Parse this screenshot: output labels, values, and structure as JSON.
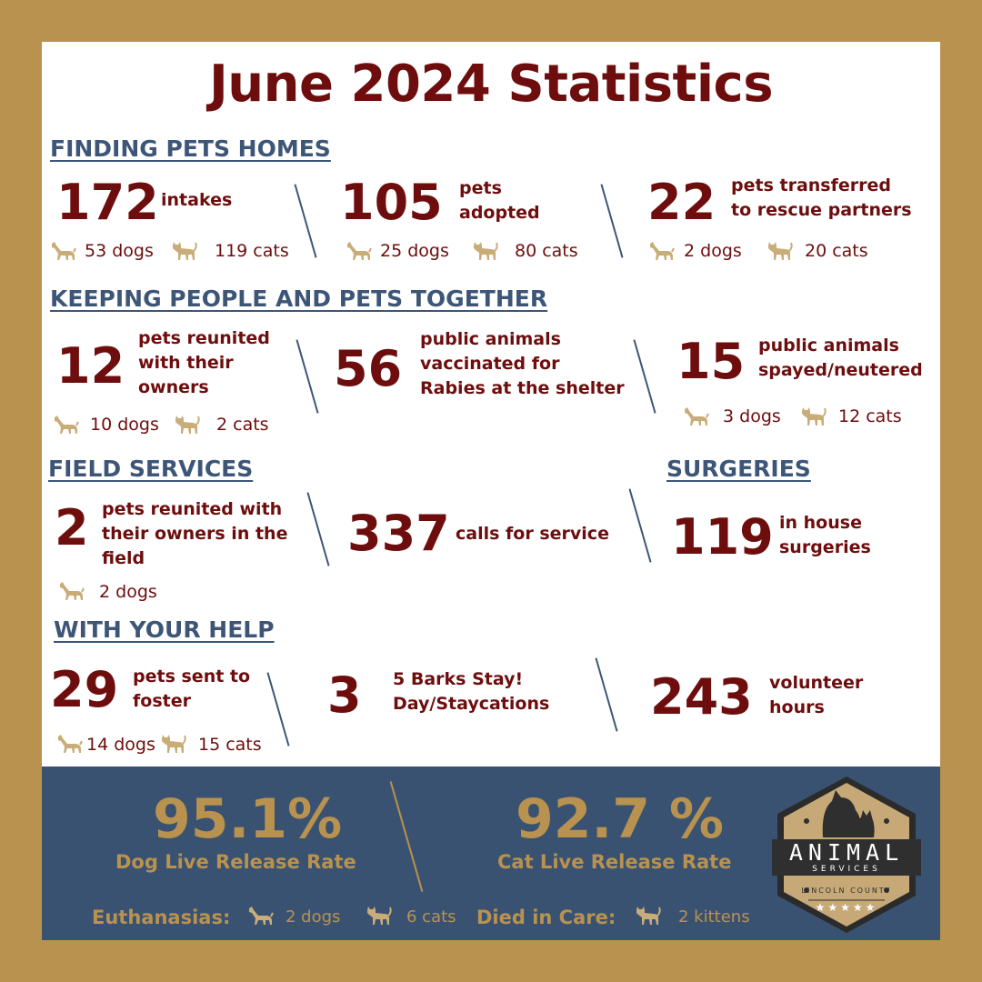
{
  "title": "June 2024 Statistics",
  "sections": {
    "finding": "FINDING PETS HOMES",
    "keeping": "KEEPING PEOPLE AND PETS TOGETHER",
    "field": "FIELD SERVICES",
    "surgeries": "SURGERIES",
    "help": "WITH YOUR HELP"
  },
  "finding": {
    "intakes": {
      "value": "172",
      "label": "intakes",
      "dogs": "53 dogs",
      "cats": "119 cats"
    },
    "adopted": {
      "value": "105",
      "label1": "pets",
      "label2": "adopted",
      "dogs": "25 dogs",
      "cats": "80 cats"
    },
    "transferred": {
      "value": "22",
      "label1": "pets transferred",
      "label2": "to rescue partners",
      "dogs": "2 dogs",
      "cats": "20 cats"
    }
  },
  "keeping": {
    "reunited": {
      "value": "12",
      "label1": "pets reunited",
      "label2": "with their",
      "label3": "owners",
      "dogs": "10 dogs",
      "cats": "2 cats"
    },
    "vaccinated": {
      "value": "56",
      "label1": "public animals",
      "label2": "vaccinated for",
      "label3": "Rabies at the shelter"
    },
    "spayed": {
      "value": "15",
      "label1": "public animals",
      "label2": "spayed/neutered",
      "dogs": "3 dogs",
      "cats": "12 cats"
    }
  },
  "field": {
    "reunited_field": {
      "value": "2",
      "label1": "pets reunited with",
      "label2": "their owners in the",
      "label3": "field",
      "dogs": "2 dogs"
    },
    "calls": {
      "value": "337",
      "label": "calls for service"
    }
  },
  "surgeries": {
    "value": "119",
    "label1": "in house",
    "label2": "surgeries"
  },
  "help": {
    "foster": {
      "value": "29",
      "label1": "pets sent to",
      "label2": "foster",
      "dogs": "14 dogs",
      "cats": "15 cats"
    },
    "barks": {
      "value": "3",
      "label1": "5 Barks Stay!",
      "label2": "Day/Staycations"
    },
    "volunteer": {
      "value": "243",
      "label1": "volunteer",
      "label2": "hours"
    }
  },
  "footer": {
    "dog_rate": "95.1%",
    "dog_rate_label": "Dog Live Release Rate",
    "cat_rate": "92.7 %",
    "cat_rate_label": "Cat Live Release Rate",
    "euth_label": "Euthanasias:",
    "euth_dogs": "2 dogs",
    "euth_cats": "6 cats",
    "died_label": "Died in Care:",
    "died_kittens": "2 kittens"
  },
  "logo": {
    "line1": "ANIMAL",
    "line2": "SERVICES",
    "line3": "LINCOLN COUNTY"
  },
  "colors": {
    "border": "#b8924e",
    "title": "#6e0d0d",
    "section": "#3d5678",
    "footer": "#3a5272",
    "icon": "#c9ad79"
  },
  "icons": {
    "dog": "dog-icon",
    "cat": "cat-icon"
  }
}
